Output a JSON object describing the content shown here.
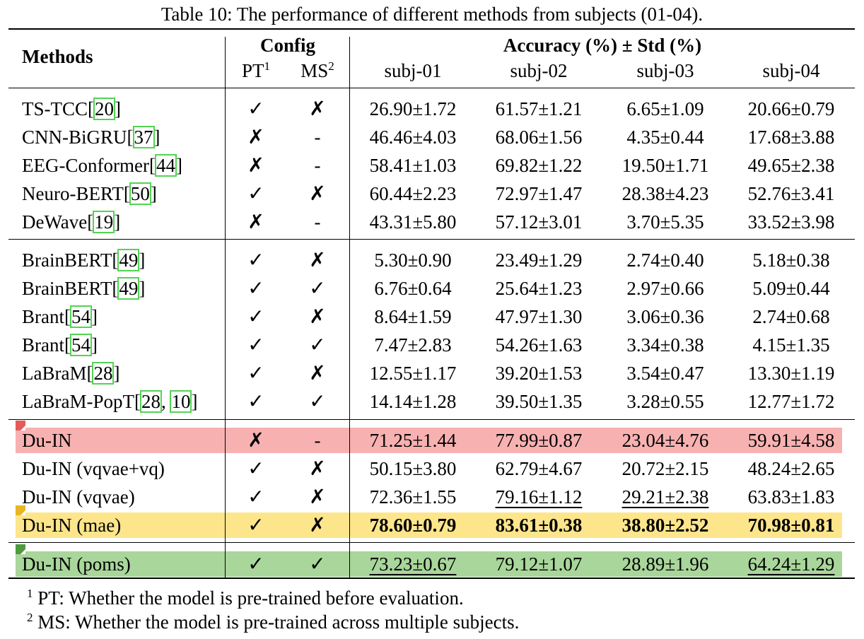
{
  "caption": "Table 10: The performance of different methods from subjects (01-04).",
  "header": {
    "methods": "Methods",
    "config": "Config",
    "pt": "PT",
    "pt_sup": "1",
    "ms": "MS",
    "ms_sup": "2",
    "accuracy": "Accuracy (%) ± Std (%)",
    "subjects": [
      "subj-01",
      "subj-02",
      "subj-03",
      "subj-04"
    ]
  },
  "rows": [
    {
      "name": "TS-TCC",
      "refs": [
        "20"
      ],
      "pt": "✓",
      "ms": "✗",
      "vals": [
        "26.90±1.72",
        "61.57±1.21",
        "6.65±1.09",
        "20.66±0.79"
      ]
    },
    {
      "name": "CNN-BiGRU",
      "refs": [
        "37"
      ],
      "pt": "✗",
      "ms": "-",
      "vals": [
        "46.46±4.03",
        "68.06±1.56",
        "4.35±0.44",
        "17.68±3.88"
      ]
    },
    {
      "name": "EEG-Conformer",
      "refs": [
        "44"
      ],
      "pt": "✗",
      "ms": "-",
      "vals": [
        "58.41±1.03",
        "69.82±1.22",
        "19.50±1.71",
        "49.65±2.38"
      ]
    },
    {
      "name": "Neuro-BERT",
      "refs": [
        "50"
      ],
      "pt": "✓",
      "ms": "✗",
      "vals": [
        "60.44±2.23",
        "72.97±1.47",
        "28.38±4.23",
        "52.76±3.41"
      ]
    },
    {
      "name": "DeWave",
      "refs": [
        "19"
      ],
      "pt": "✗",
      "ms": "-",
      "vals": [
        "43.31±5.80",
        "57.12±3.01",
        "3.70±5.35",
        "33.52±3.98"
      ]
    },
    {
      "name": "BrainBERT",
      "refs": [
        "49"
      ],
      "pt": "✓",
      "ms": "✗",
      "vals": [
        "5.30±0.90",
        "23.49±1.29",
        "2.74±0.40",
        "5.18±0.38"
      ]
    },
    {
      "name": "BrainBERT",
      "refs": [
        "49"
      ],
      "pt": "✓",
      "ms": "✓",
      "vals": [
        "6.76±0.64",
        "25.64±1.23",
        "2.97±0.66",
        "5.09±0.44"
      ]
    },
    {
      "name": "Brant",
      "refs": [
        "54"
      ],
      "pt": "✓",
      "ms": "✗",
      "vals": [
        "8.64±1.59",
        "47.97±1.30",
        "3.06±0.36",
        "2.74±0.68"
      ]
    },
    {
      "name": "Brant",
      "refs": [
        "54"
      ],
      "pt": "✓",
      "ms": "✓",
      "vals": [
        "7.47±2.83",
        "54.26±1.63",
        "3.34±0.38",
        "4.15±1.35"
      ]
    },
    {
      "name": "LaBraM",
      "refs": [
        "28"
      ],
      "pt": "✓",
      "ms": "✗",
      "vals": [
        "12.55±1.17",
        "39.20±1.53",
        "3.54±0.47",
        "13.30±1.19"
      ]
    },
    {
      "name": "LaBraM-PopT",
      "refs": [
        "28",
        "10"
      ],
      "pt": "✓",
      "ms": "✓",
      "vals": [
        "14.14±1.28",
        "39.50±1.35",
        "3.28±0.55",
        "12.77±1.72"
      ]
    },
    {
      "name": "Du-IN",
      "refs": [],
      "pt": "✗",
      "ms": "-",
      "vals": [
        "71.25±1.44",
        "77.99±0.87",
        "23.04±4.76",
        "59.91±4.58"
      ],
      "highlight": "#f8b1b1",
      "corner": "#e55b5b"
    },
    {
      "name": "Du-IN (vqvae+vq)",
      "refs": [],
      "pt": "✓",
      "ms": "✗",
      "vals": [
        "50.15±3.80",
        "62.79±4.67",
        "20.72±2.15",
        "48.24±2.65"
      ]
    },
    {
      "name": "Du-IN (vqvae)",
      "refs": [],
      "pt": "✓",
      "ms": "✗",
      "vals": [
        "72.36±1.55",
        "79.16±1.12",
        "29.21±2.38",
        "63.83±1.83"
      ],
      "underline": [
        1,
        2
      ]
    },
    {
      "name": "Du-IN (mae)",
      "refs": [],
      "pt": "✓",
      "ms": "✗",
      "vals": [
        "78.60±0.79",
        "83.61±0.38",
        "38.80±2.52",
        "70.98±0.81"
      ],
      "bold": true,
      "highlight": "#fde58b",
      "corner": "#e8b623"
    },
    {
      "name": "Du-IN (poms)",
      "refs": [],
      "pt": "✓",
      "ms": "✓",
      "vals": [
        "73.23±0.67",
        "79.12±1.07",
        "28.89±1.96",
        "64.24±1.29"
      ],
      "underline": [
        0,
        3
      ],
      "highlight": "#a9d69b",
      "corner": "#4f9a3e"
    }
  ],
  "footnotes": [
    {
      "sup": "1",
      "text": "PT: Whether the model is pre-trained before evaluation."
    },
    {
      "sup": "2",
      "text": "MS: Whether the model is pre-trained across multiple subjects."
    }
  ]
}
